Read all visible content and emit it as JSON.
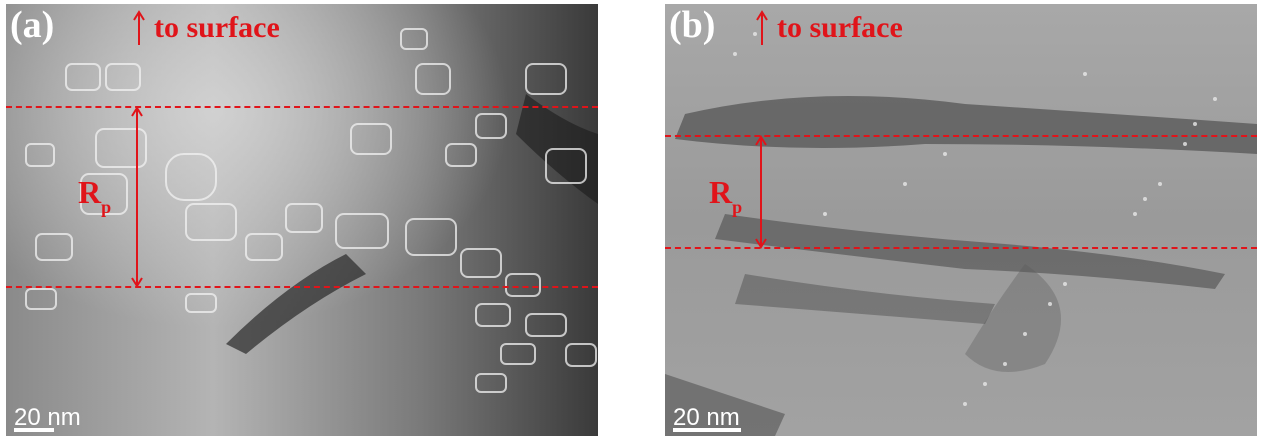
{
  "panels": [
    {
      "label": "(a)",
      "surface_text": "to surface",
      "rp_main": "R",
      "rp_sub": "p",
      "scale_text": "20 nm"
    },
    {
      "label": "(b)",
      "surface_text": "to surface",
      "rp_main": "R",
      "rp_sub": "p",
      "scale_text": "20 nm"
    }
  ],
  "colors": {
    "annotation": "#e0141a",
    "label": "#ffffff"
  }
}
